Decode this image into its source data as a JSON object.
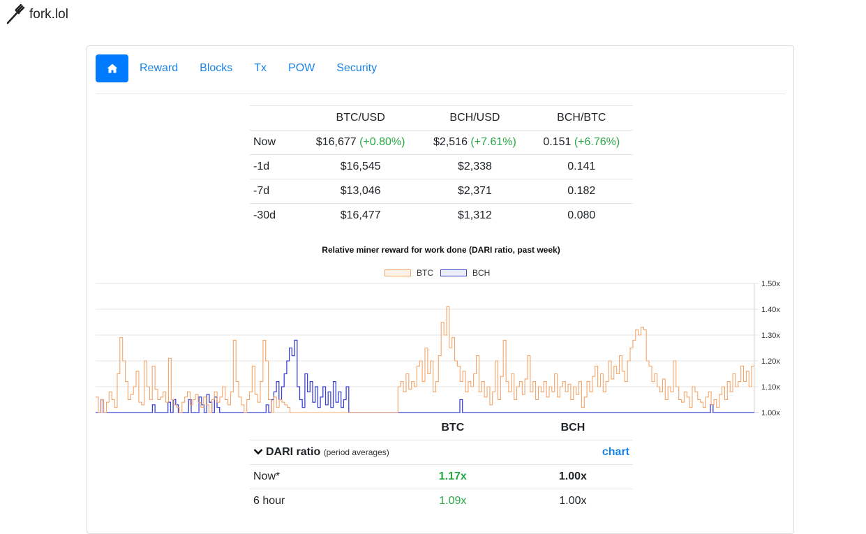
{
  "site": {
    "name": "fork.lol"
  },
  "nav": {
    "home_icon": "home-icon",
    "links": [
      "Reward",
      "Blocks",
      "Tx",
      "POW",
      "Security"
    ]
  },
  "prices": {
    "headers": [
      "",
      "BTC/USD",
      "BCH/USD",
      "BCH/BTC"
    ],
    "rows": [
      {
        "label": "Now",
        "btc_usd": "$16,677",
        "btc_usd_chg": "(+0.80%)",
        "bch_usd": "$2,516",
        "bch_usd_chg": "(+7.61%)",
        "bch_btc": "0.151",
        "bch_btc_chg": "(+6.76%)"
      },
      {
        "label": "-1d",
        "btc_usd": "$16,545",
        "bch_usd": "$2,338",
        "bch_btc": "0.141"
      },
      {
        "label": "-7d",
        "btc_usd": "$13,046",
        "bch_usd": "$2,371",
        "bch_btc": "0.182"
      },
      {
        "label": "-30d",
        "btc_usd": "$16,477",
        "bch_usd": "$1,312",
        "bch_btc": "0.080"
      }
    ]
  },
  "chart_data": {
    "type": "line",
    "title": "Relative miner reward for work done (DARI ratio, past week)",
    "ylim": [
      1.0,
      1.5
    ],
    "y_ticks": [
      "1.00x",
      "1.10x",
      "1.20x",
      "1.30x",
      "1.40x",
      "1.50x"
    ],
    "grid": true,
    "legend_position": "top-center",
    "series": [
      {
        "name": "BTC",
        "color": "#f4a56a",
        "values": [
          1.06,
          1.0,
          1.05,
          1.0,
          1.04,
          1.08,
          1.05,
          1.02,
          1.15,
          1.29,
          1.2,
          1.12,
          1.05,
          1.07,
          1.1,
          1.16,
          1.04,
          1.03,
          1.2,
          1.1,
          1.05,
          1.18,
          1.09,
          1.05,
          1.06,
          1.08,
          1.04,
          1.21,
          1.05,
          1.03,
          1.02,
          1.0,
          1.04,
          1.06,
          1.08,
          1.03,
          1.05,
          1.07,
          1.04,
          1.02,
          1.06,
          1.03,
          1.0,
          1.05,
          1.08,
          1.04,
          1.06,
          1.1,
          1.05,
          1.03,
          1.08,
          1.28,
          1.12,
          1.06,
          1.03,
          1.0,
          1.05,
          1.08,
          1.18,
          1.07,
          1.04,
          1.12,
          1.28,
          1.2,
          1.05,
          1.0,
          1.06,
          1.02,
          1.05,
          1.04,
          1.03,
          1.02,
          1.0,
          1.0,
          1.0,
          1.0,
          1.0,
          1.0,
          1.0,
          1.0,
          1.0,
          1.0,
          1.0,
          1.0,
          1.0,
          1.0,
          1.0,
          1.0,
          1.0,
          1.0,
          1.0,
          1.0,
          1.0,
          1.0,
          1.0,
          1.0,
          1.0,
          1.0,
          1.0,
          1.0,
          1.0,
          1.0,
          1.0,
          1.0,
          1.0,
          1.0,
          1.0,
          1.0,
          1.0,
          1.0,
          1.0,
          1.0,
          1.1,
          1.12,
          1.08,
          1.15,
          1.09,
          1.12,
          1.1,
          1.18,
          1.2,
          1.12,
          1.25,
          1.15,
          1.2,
          1.08,
          1.12,
          1.22,
          1.35,
          1.3,
          1.41,
          1.25,
          1.29,
          1.2,
          1.18,
          1.12,
          1.16,
          1.08,
          1.12,
          1.1,
          1.15,
          1.22,
          1.08,
          1.12,
          1.06,
          1.1,
          1.03,
          1.08,
          1.2,
          1.05,
          1.14,
          1.28,
          1.12,
          1.08,
          1.15,
          1.05,
          1.1,
          1.12,
          1.07,
          1.13,
          1.22,
          1.08,
          1.12,
          1.05,
          1.1,
          1.08,
          1.12,
          1.06,
          1.1,
          1.08,
          1.15,
          1.06,
          1.1,
          1.12,
          1.08,
          1.11,
          1.05,
          1.1,
          1.07,
          1.12,
          1.02,
          1.06,
          1.12,
          1.08,
          1.14,
          1.18,
          1.1,
          1.15,
          1.08,
          1.12,
          1.2,
          1.13,
          1.18,
          1.15,
          1.22,
          1.16,
          1.12,
          1.2,
          1.25,
          1.28,
          1.32,
          1.3,
          1.33,
          1.32,
          1.2,
          1.18,
          1.12,
          1.15,
          1.1,
          1.08,
          1.13,
          1.05,
          1.1,
          1.08,
          1.2,
          1.1,
          1.05,
          1.04,
          1.08,
          1.06,
          1.02,
          1.1,
          1.08,
          1.05,
          1.04,
          1.02,
          1.06,
          1.08,
          1.03,
          1.05,
          1.02,
          1.07,
          1.1,
          1.05,
          1.12,
          1.08,
          1.15,
          1.1,
          1.12,
          1.18,
          1.12,
          1.16,
          1.1,
          1.18
        ]
      },
      {
        "name": "BCH",
        "color": "#3b43d6",
        "values": [
          1.0,
          1.0,
          1.05,
          1.0,
          1.0,
          1.0,
          1.0,
          1.0,
          1.0,
          1.0,
          1.0,
          1.0,
          1.0,
          1.0,
          1.0,
          1.0,
          1.0,
          1.0,
          1.0,
          1.0,
          1.0,
          1.0,
          1.03,
          1.0,
          1.0,
          1.0,
          1.0,
          1.0,
          1.04,
          1.0,
          1.05,
          1.03,
          1.0,
          1.0,
          1.0,
          1.0,
          1.05,
          1.0,
          1.0,
          1.0,
          1.06,
          1.03,
          1.0,
          1.07,
          1.04,
          1.0,
          1.06,
          1.02,
          1.0,
          1.0,
          1.0,
          1.0,
          1.0,
          1.0,
          1.0,
          1.0,
          1.0,
          1.0,
          1.0,
          1.0,
          1.0,
          1.0,
          1.0,
          1.0,
          1.0,
          1.0,
          1.03,
          1.0,
          1.05,
          1.08,
          1.12,
          1.05,
          1.1,
          1.15,
          1.2,
          1.25,
          1.22,
          1.28,
          1.1,
          1.05,
          1.02,
          1.15,
          1.08,
          1.12,
          1.04,
          1.1,
          1.02,
          1.06,
          1.1,
          1.03,
          1.08,
          1.02,
          1.12,
          1.04,
          1.08,
          1.02,
          1.05,
          1.1,
          1.0,
          1.0,
          1.0,
          1.0,
          1.0,
          1.0,
          1.0,
          1.0,
          1.0,
          1.0,
          1.0,
          1.0,
          1.0,
          1.0,
          1.0,
          1.0,
          1.0,
          1.0,
          1.0,
          1.0,
          1.0,
          1.0,
          1.0,
          1.0,
          1.0,
          1.0,
          1.0,
          1.0,
          1.0,
          1.0,
          1.0,
          1.0,
          1.0,
          1.0,
          1.0,
          1.0,
          1.0,
          1.0,
          1.0,
          1.0,
          1.0,
          1.0,
          1.0,
          1.05,
          1.0,
          1.0,
          1.0,
          1.0,
          1.0,
          1.0,
          1.0,
          1.0,
          1.0,
          1.0,
          1.0,
          1.0,
          1.0,
          1.0,
          1.0,
          1.0,
          1.0,
          1.0,
          1.0,
          1.0,
          1.0,
          1.0,
          1.0,
          1.0,
          1.0,
          1.0,
          1.0,
          1.0,
          1.0,
          1.0,
          1.0,
          1.0,
          1.0,
          1.0,
          1.0,
          1.0,
          1.0,
          1.0,
          1.0,
          1.0,
          1.0,
          1.0,
          1.0,
          1.0,
          1.0,
          1.0,
          1.0,
          1.0,
          1.0,
          1.0,
          1.0,
          1.0,
          1.0,
          1.0,
          1.0,
          1.0,
          1.0,
          1.0,
          1.0,
          1.0,
          1.0,
          1.0,
          1.0,
          1.0,
          1.0,
          1.0,
          1.0,
          1.0,
          1.0,
          1.0,
          1.0,
          1.0,
          1.0,
          1.0,
          1.0,
          1.0,
          1.0,
          1.0,
          1.0,
          1.0,
          1.0,
          1.0,
          1.0,
          1.0,
          1.0,
          1.0,
          1.0,
          1.0,
          1.0,
          1.0,
          1.0,
          1.0,
          1.0,
          1.0,
          1.0,
          1.0,
          1.03,
          1.0,
          1.0,
          1.0,
          1.0,
          1.0,
          1.0,
          1.0,
          1.0,
          1.0,
          1.0,
          1.0,
          1.0,
          1.0,
          1.0,
          1.0,
          1.0
        ]
      }
    ]
  },
  "dari": {
    "col_btc": "BTC",
    "col_bch": "BCH",
    "heading": "DARI ratio",
    "heading_note": "(period averages)",
    "chart_link": "chart",
    "rows": [
      {
        "label": "Now*",
        "btc": "1.17x",
        "bch": "1.00x"
      },
      {
        "label": "6 hour",
        "btc": "1.09x",
        "bch": "1.00x"
      }
    ]
  }
}
